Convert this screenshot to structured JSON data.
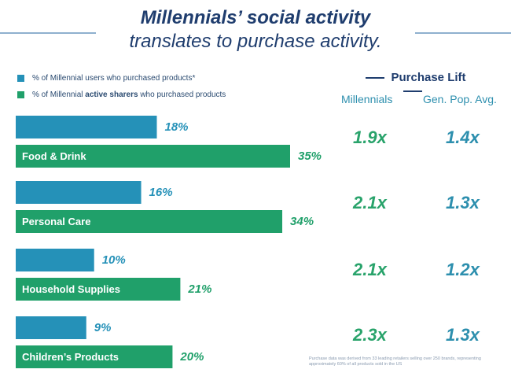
{
  "title": "Millennials’ social activity",
  "subtitle": "translates to purchase activity.",
  "legend": {
    "item1": "% of Millennial users who purchased products*",
    "item2_pre": "% of Millennial ",
    "item2_bold": "active sharers",
    "item2_post": " who purchased products"
  },
  "lift": {
    "header": "Purchase Lift",
    "col1": "Millennials",
    "col2": "Gen. Pop. Avg.",
    "rows": [
      {
        "millennials": "1.9x",
        "gen_pop": "1.4x"
      },
      {
        "millennials": "2.1x",
        "gen_pop": "1.3x"
      },
      {
        "millennials": "2.1x",
        "gen_pop": "1.2x"
      },
      {
        "millennials": "2.3x",
        "gen_pop": "1.3x"
      }
    ]
  },
  "footnote": "Purchase data was derived from 33 leading retailers selling over 250 brands, representing approximately 60% of all products sold in the US",
  "chart_data": {
    "type": "bar",
    "orientation": "horizontal",
    "categories": [
      "Food & Drink",
      "Personal Care",
      "Household Supplies",
      "Children’s Products"
    ],
    "series": [
      {
        "name": "% of Millennial users who purchased products*",
        "values": [
          18,
          16,
          10,
          9
        ],
        "labels": [
          "18%",
          "16%",
          "10%",
          "9%"
        ],
        "color": "#2591b8"
      },
      {
        "name": "% of Millennial active sharers who purchased products",
        "values": [
          35,
          34,
          21,
          20
        ],
        "labels": [
          "35%",
          "34%",
          "21%",
          "20%"
        ],
        "color": "#20a06a"
      }
    ],
    "xlim": [
      0,
      35
    ]
  }
}
